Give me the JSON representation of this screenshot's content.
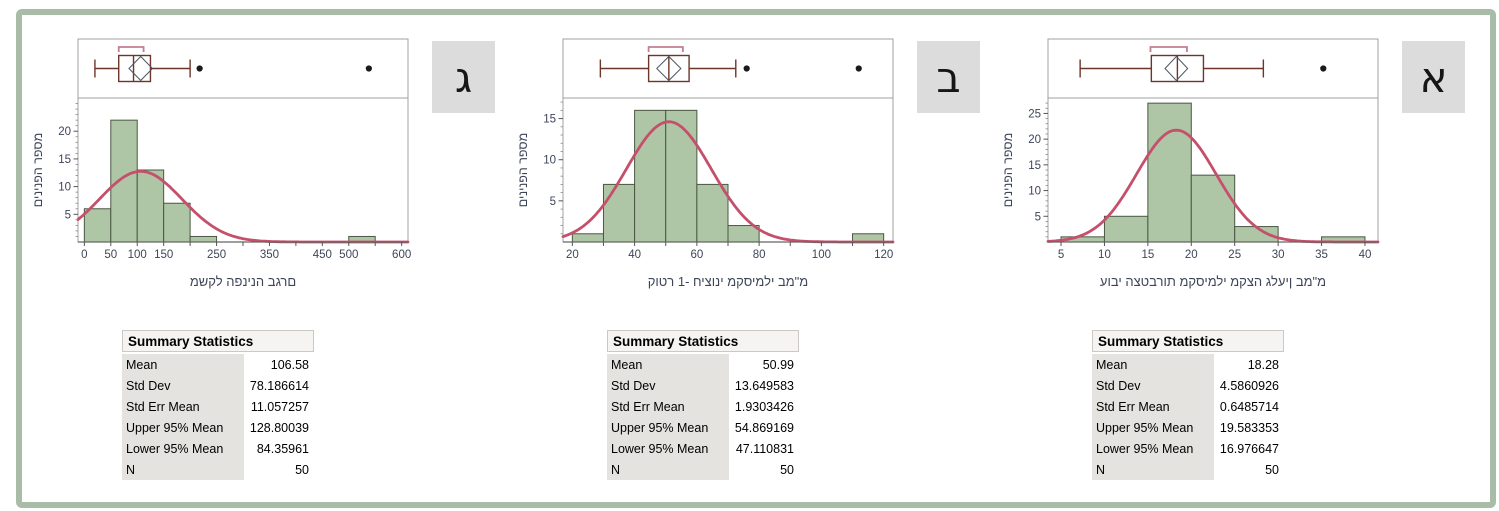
{
  "figure": {
    "border_color": "#a9bca7",
    "background": "#ffffff"
  },
  "colors": {
    "bar_fill": "#aec6a5",
    "bar_stroke": "#4a5743",
    "curve": "#c4506b",
    "box_stroke": "#6e352a",
    "bracket": "#c47e8f",
    "frame_stroke": "#a0a0a0",
    "axis_stroke": "#666666",
    "tick_stroke": "#555555",
    "tick_text": "#3d4559",
    "diamond": "#4d5662",
    "outlier": "#1a1a1a"
  },
  "panels": [
    {
      "letter": "ג",
      "x_label": "משקל הפנינה בגרם",
      "y_label": "מספר הפנינים",
      "summary": {
        "title": "Summary Statistics",
        "rows": [
          {
            "label": "Mean",
            "value": "106.58"
          },
          {
            "label": "Std Dev",
            "value": "78.186614"
          },
          {
            "label": "Std Err Mean",
            "value": "11.057257"
          },
          {
            "label": "Upper 95% Mean",
            "value": "128.80039"
          },
          {
            "label": "Lower 95% Mean",
            "value": "84.35961"
          },
          {
            "label": "N",
            "value": "50"
          }
        ]
      }
    },
    {
      "letter": "ב",
      "x_label": "קוטר 1- חיצוני מקסימלי במ\"מ",
      "y_label": "מספר הפנינים",
      "summary": {
        "title": "Summary Statistics",
        "rows": [
          {
            "label": "Mean",
            "value": "50.99"
          },
          {
            "label": "Std Dev",
            "value": "13.649583"
          },
          {
            "label": "Std Err Mean",
            "value": "1.9303426"
          },
          {
            "label": "Upper 95% Mean",
            "value": "54.869169"
          },
          {
            "label": "Lower 95% Mean",
            "value": "47.110831"
          },
          {
            "label": "N",
            "value": "50"
          }
        ]
      }
    },
    {
      "letter": "א",
      "x_label": "עובי הצטברות מקסימלי מקצה גלעין במ\"מ",
      "y_label": "מספר הפנינים",
      "summary": {
        "title": "Summary Statistics",
        "rows": [
          {
            "label": "Mean",
            "value": "18.28"
          },
          {
            "label": "Std Dev",
            "value": "4.5860926"
          },
          {
            "label": "Std Err Mean",
            "value": "0.6485714"
          },
          {
            "label": "Upper 95% Mean",
            "value": "19.583353"
          },
          {
            "label": "Lower 95% Mean",
            "value": "16.976647"
          },
          {
            "label": "N",
            "value": "50"
          }
        ]
      }
    }
  ],
  "chart_data": [
    {
      "type": "histogram",
      "xlabel": "משקל הפנינה בגרם",
      "ylabel": "מספר הפנינים",
      "n": 50,
      "bin_start": 0,
      "bin_width": 50,
      "counts": [
        6,
        22,
        13,
        7,
        1,
        0,
        0,
        0,
        0,
        0,
        1
      ],
      "normal_fit": {
        "mean": 106.58,
        "sd": 78.186614
      },
      "boxplot": {
        "whisker_low": 20,
        "q1": 65,
        "median": 93,
        "q3": 125,
        "whisker_high": 200,
        "outliers": [
          218,
          538
        ],
        "mean_ci_diamond": [
          84.35961,
          128.80039
        ],
        "shortest_half_bracket": [
          65,
          112
        ]
      },
      "x_range": [
        -12,
        612
      ],
      "y_max": 26,
      "y_ticks": [
        5,
        10,
        15,
        20
      ],
      "x_ticks": [
        {
          "v": 0,
          "label": "0"
        },
        {
          "v": 50,
          "label": "50"
        },
        {
          "v": 100,
          "label": "100"
        },
        {
          "v": 150,
          "label": "150"
        },
        {
          "v": 200,
          "label": ""
        },
        {
          "v": 250,
          "label": "250"
        },
        {
          "v": 300,
          "label": ""
        },
        {
          "v": 350,
          "label": "350"
        },
        {
          "v": 400,
          "label": ""
        },
        {
          "v": 450,
          "label": "450"
        },
        {
          "v": 500,
          "label": "500"
        },
        {
          "v": 550,
          "label": ""
        },
        {
          "v": 600,
          "label": "600"
        }
      ]
    },
    {
      "type": "histogram",
      "xlabel": "קוטר 1- חיצוני מקסימלי במ\"מ",
      "ylabel": "מספר הפנינים",
      "n": 50,
      "bin_start": 20,
      "bin_width": 10,
      "counts": [
        1,
        7,
        16,
        16,
        7,
        2,
        0,
        0,
        0,
        1
      ],
      "normal_fit": {
        "mean": 50.99,
        "sd": 13.649583
      },
      "boxplot": {
        "whisker_low": 29,
        "q1": 44.5,
        "median": 51,
        "q3": 57.5,
        "whisker_high": 72.5,
        "outliers": [
          76,
          112
        ],
        "mean_ci_diamond": [
          47.110831,
          54.869169
        ],
        "shortest_half_bracket": [
          44.5,
          55.5
        ]
      },
      "x_range": [
        17,
        123
      ],
      "y_max": 17.5,
      "y_ticks": [
        5,
        10,
        15
      ],
      "x_ticks": [
        {
          "v": 20,
          "label": "20"
        },
        {
          "v": 30,
          "label": ""
        },
        {
          "v": 40,
          "label": "40"
        },
        {
          "v": 50,
          "label": ""
        },
        {
          "v": 60,
          "label": "60"
        },
        {
          "v": 70,
          "label": ""
        },
        {
          "v": 80,
          "label": "80"
        },
        {
          "v": 90,
          "label": ""
        },
        {
          "v": 100,
          "label": "100"
        },
        {
          "v": 110,
          "label": ""
        },
        {
          "v": 120,
          "label": "120"
        }
      ]
    },
    {
      "type": "histogram",
      "xlabel": "עובי הצטברות מקסימלי מקצה גלעין במ\"מ",
      "ylabel": "מספר הפנינים",
      "n": 50,
      "bin_start": 5,
      "bin_width": 5,
      "counts": [
        1,
        5,
        27,
        13,
        3,
        0,
        1
      ],
      "normal_fit": {
        "mean": 18.28,
        "sd": 4.5860926
      },
      "boxplot": {
        "whisker_low": 7.2,
        "q1": 15.4,
        "median": 18.4,
        "q3": 21.4,
        "whisker_high": 28.3,
        "outliers": [
          35.2
        ],
        "mean_ci_diamond": [
          16.976647,
          19.583353
        ],
        "shortest_half_bracket": [
          15.3,
          19.5
        ]
      },
      "x_range": [
        3.5,
        41.5
      ],
      "y_max": 28,
      "y_ticks": [
        5,
        10,
        15,
        20,
        25
      ],
      "x_ticks": [
        {
          "v": 5,
          "label": "5"
        },
        {
          "v": 10,
          "label": "10"
        },
        {
          "v": 15,
          "label": "15"
        },
        {
          "v": 20,
          "label": "20"
        },
        {
          "v": 25,
          "label": "25"
        },
        {
          "v": 30,
          "label": "30"
        },
        {
          "v": 35,
          "label": "35"
        },
        {
          "v": 40,
          "label": "40"
        }
      ]
    }
  ]
}
